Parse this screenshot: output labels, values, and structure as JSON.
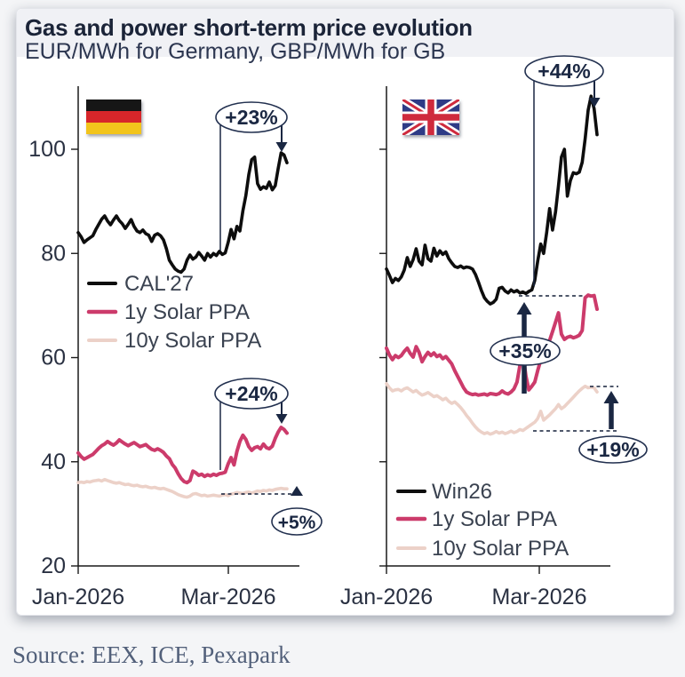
{
  "header": {
    "title": "Gas and power short-term price evolution",
    "subtitle": "EUR/MWh for Germany, GBP/MWh for GB"
  },
  "footer": {
    "source": "Source: EEX, ICE, Pexapark"
  },
  "colors": {
    "navy": "#1a2742",
    "black_line": "#0d0d0d",
    "ppa1y": "#cc3b6b",
    "ppa10y": "#ecd1c8",
    "axis": "#1a1a1a",
    "tick_text": "#2a3142",
    "legend_text": "#3a4250"
  },
  "chart_data": [
    {
      "panel": "germany",
      "type": "line",
      "flag": "germany-flag",
      "units": "EUR/MWh",
      "ylim": [
        20,
        113
      ],
      "y_ticks": [
        100,
        80,
        60,
        40,
        20
      ],
      "y_tick_labels_visible": true,
      "x_ticks": [
        "Jan-2026",
        "Mar-2026"
      ],
      "series": [
        {
          "name": "CAL'27",
          "color_key": "black_line",
          "width": 3.6,
          "values": [
            84.0,
            83.2,
            82.1,
            82.6,
            83.0,
            83.4,
            84.6,
            85.6,
            86.6,
            87.2,
            86.2,
            85.5,
            86.4,
            87.2,
            86.3,
            85.7,
            84.8,
            85.6,
            86.5,
            85.2,
            84.3,
            84.0,
            84.5,
            83.8,
            83.5,
            82.3,
            83.5,
            83.8,
            83.4,
            82.6,
            80.9,
            78.7,
            77.8,
            77.0,
            76.6,
            76.4,
            77.0,
            78.7,
            79.7,
            78.9,
            79.3,
            80.2,
            79.5,
            78.7,
            80.0,
            79.3,
            80.0,
            79.6,
            80.4,
            79.8,
            80.1,
            82.1,
            84.6,
            82.8,
            85.2,
            84.3,
            88.2,
            91.1,
            95.1,
            98.0,
            98.5,
            93.4,
            92.3,
            92.8,
            92.5,
            93.7,
            92.2,
            93.0,
            96.3,
            99.3,
            98.9,
            97.4
          ]
        },
        {
          "name": "1y Solar PPA",
          "color_key": "ppa1y",
          "width": 4,
          "values": [
            41.7,
            41.0,
            40.5,
            40.8,
            41.1,
            41.4,
            42.0,
            42.6,
            43.1,
            43.4,
            43.9,
            43.5,
            43.2,
            43.6,
            44.2,
            43.8,
            43.4,
            43.1,
            43.4,
            43.7,
            43.3,
            42.9,
            43.1,
            43.3,
            42.8,
            42.4,
            42.2,
            42.5,
            42.2,
            41.8,
            41.1,
            40.6,
            39.5,
            38.8,
            37.7,
            36.8,
            36.2,
            36.0,
            36.4,
            38.2,
            37.9,
            37.4,
            37.6,
            37.2,
            37.5,
            37.3,
            37.6,
            37.4,
            37.7,
            37.8,
            38.0,
            39.6,
            40.8,
            39.4,
            42.0,
            43.9,
            45.1,
            44.3,
            42.9,
            42.2,
            42.7,
            42.9,
            42.5,
            43.4,
            42.7,
            42.5,
            43.0,
            44.5,
            45.7,
            46.6,
            46.2,
            45.5
          ]
        },
        {
          "name": "10y Solar PPA",
          "color_key": "ppa10y",
          "width": 3.6,
          "values": [
            36.0,
            36.1,
            36.0,
            36.2,
            36.1,
            36.3,
            36.4,
            36.5,
            36.3,
            36.6,
            36.4,
            36.2,
            36.0,
            35.9,
            36.0,
            35.8,
            35.6,
            35.7,
            35.5,
            35.4,
            35.5,
            35.3,
            35.2,
            35.3,
            35.1,
            35.0,
            35.1,
            34.9,
            34.8,
            34.9,
            34.7,
            34.5,
            34.3,
            34.0,
            33.7,
            33.5,
            33.3,
            33.2,
            33.4,
            33.8,
            33.9,
            33.7,
            33.5,
            33.6,
            33.4,
            33.5,
            33.6,
            33.5,
            33.4,
            33.6,
            33.7,
            33.5,
            33.8,
            33.9,
            34.1,
            34.0,
            33.9,
            34.1,
            34.2,
            34.0,
            34.2,
            34.4,
            34.3,
            34.5,
            34.4,
            34.6,
            34.5,
            34.7,
            34.8,
            34.9,
            34.8,
            34.8
          ]
        }
      ],
      "annotations": [
        {
          "id": "de23",
          "label": "+23%"
        },
        {
          "id": "de24",
          "label": "+24%"
        },
        {
          "id": "de5",
          "label": "+5%"
        }
      ]
    },
    {
      "panel": "gb",
      "type": "line",
      "flag": "uk-flag",
      "units": "GBP/MWh",
      "ylim": [
        20,
        113
      ],
      "y_ticks": [
        100,
        80,
        60,
        40,
        20
      ],
      "y_tick_labels_visible": false,
      "x_ticks": [
        "Jan-2026",
        "Mar-2026"
      ],
      "series": [
        {
          "name": "Win26",
          "color_key": "black_line",
          "width": 3.6,
          "values": [
            77.0,
            75.8,
            74.4,
            75.2,
            74.8,
            75.5,
            76.8,
            79.2,
            77.5,
            78.8,
            80.9,
            78.5,
            77.8,
            81.6,
            79.0,
            78.5,
            81.0,
            79.5,
            80.5,
            79.8,
            80.3,
            79.0,
            78.2,
            77.5,
            77.3,
            77.6,
            77.2,
            77.4,
            77.3,
            77.0,
            76.0,
            74.5,
            72.9,
            71.5,
            70.8,
            70.3,
            70.6,
            71.2,
            73.3,
            73.5,
            72.8,
            72.4,
            73.0,
            72.6,
            72.9,
            72.4,
            72.6,
            72.3,
            72.7,
            73.0,
            74.8,
            78.5,
            81.8,
            80.0,
            84.0,
            88.6,
            84.5,
            88.0,
            93.0,
            98.5,
            100.0,
            91.0,
            94.0,
            95.5,
            95.3,
            95.6,
            97.5,
            102.0,
            107.5,
            110.2,
            107.8,
            102.8
          ]
        },
        {
          "name": "1y Solar PPA",
          "color_key": "ppa1y",
          "width": 4,
          "values": [
            61.8,
            60.5,
            59.6,
            60.4,
            60.0,
            60.4,
            61.2,
            61.8,
            60.8,
            60.1,
            62.1,
            61.0,
            59.2,
            60.2,
            61.0,
            60.4,
            60.9,
            60.2,
            60.5,
            59.8,
            60.2,
            59.5,
            58.8,
            57.5,
            56.4,
            55.3,
            54.2,
            53.4,
            53.1,
            52.9,
            53.0,
            52.8,
            52.9,
            53.0,
            52.8,
            53.1,
            53.0,
            52.9,
            53.1,
            53.6,
            53.2,
            53.0,
            53.4,
            54.0,
            55.3,
            58.5,
            60.8,
            56.5,
            53.8,
            54.5,
            55.3,
            57.5,
            59.5,
            60.4,
            61.5,
            63.3,
            65.0,
            66.8,
            68.6,
            64.5,
            63.5,
            63.9,
            64.1,
            63.8,
            64.0,
            64.3,
            65.2,
            71.5,
            72.0,
            71.8,
            71.9,
            69.3
          ]
        },
        {
          "name": "10y Solar PPA",
          "color_key": "ppa10y",
          "width": 3.6,
          "values": [
            55.0,
            54.2,
            53.6,
            53.8,
            53.9,
            53.6,
            54.0,
            54.2,
            53.8,
            53.4,
            53.7,
            53.2,
            52.8,
            53.0,
            53.3,
            52.9,
            52.5,
            52.7,
            52.3,
            51.9,
            52.2,
            51.6,
            51.2,
            51.5,
            51.0,
            50.4,
            49.7,
            48.9,
            48.2,
            47.4,
            46.7,
            46.1,
            45.7,
            45.4,
            45.6,
            45.3,
            45.5,
            45.8,
            45.5,
            45.7,
            45.4,
            45.6,
            45.9,
            45.6,
            45.8,
            46.2,
            46.0,
            46.4,
            46.8,
            47.2,
            47.6,
            48.3,
            49.7,
            48.0,
            48.5,
            49.0,
            49.6,
            50.2,
            51.0,
            50.2,
            50.6,
            51.2,
            51.8,
            52.4,
            53.0,
            53.6,
            54.1,
            54.5,
            54.2,
            54.3,
            54.2,
            53.4
          ]
        }
      ],
      "annotations": [
        {
          "id": "gb44",
          "label": "+44%"
        },
        {
          "id": "gb35",
          "label": "+35%"
        },
        {
          "id": "gb19",
          "label": "+19%"
        }
      ]
    }
  ]
}
